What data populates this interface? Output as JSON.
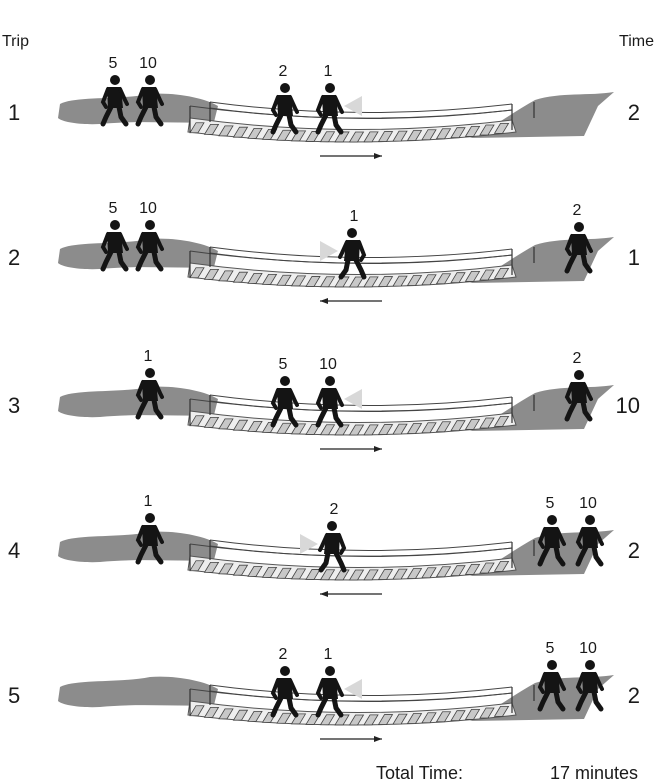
{
  "headers": {
    "trip": "Trip",
    "time": "Time"
  },
  "trips": [
    {
      "trip": "1",
      "time": "2",
      "direction": "right",
      "left_people": [
        "5",
        "10"
      ],
      "bridge_people": [
        "2",
        "1"
      ],
      "right_people": []
    },
    {
      "trip": "2",
      "time": "1",
      "direction": "left",
      "left_people": [
        "5",
        "10"
      ],
      "bridge_people": [
        "1"
      ],
      "right_people": [
        "2"
      ]
    },
    {
      "trip": "3",
      "time": "10",
      "direction": "right",
      "left_people": [
        "1"
      ],
      "bridge_people": [
        "5",
        "10"
      ],
      "right_people": [
        "2"
      ]
    },
    {
      "trip": "4",
      "time": "2",
      "direction": "left",
      "left_people": [
        "1"
      ],
      "bridge_people": [
        "2"
      ],
      "right_people": [
        "5",
        "10"
      ]
    },
    {
      "trip": "5",
      "time": "2",
      "direction": "right",
      "left_people": [],
      "bridge_people": [
        "2",
        "1"
      ],
      "right_people": [
        "5",
        "10"
      ]
    }
  ],
  "total": {
    "label": "Total Time:",
    "value": "17 minutes"
  },
  "colors": {
    "ground": "#8c8c8c",
    "figure": "#141414",
    "flashlight_beam": "#d8d8d8",
    "plank": "#c8c8c8"
  }
}
